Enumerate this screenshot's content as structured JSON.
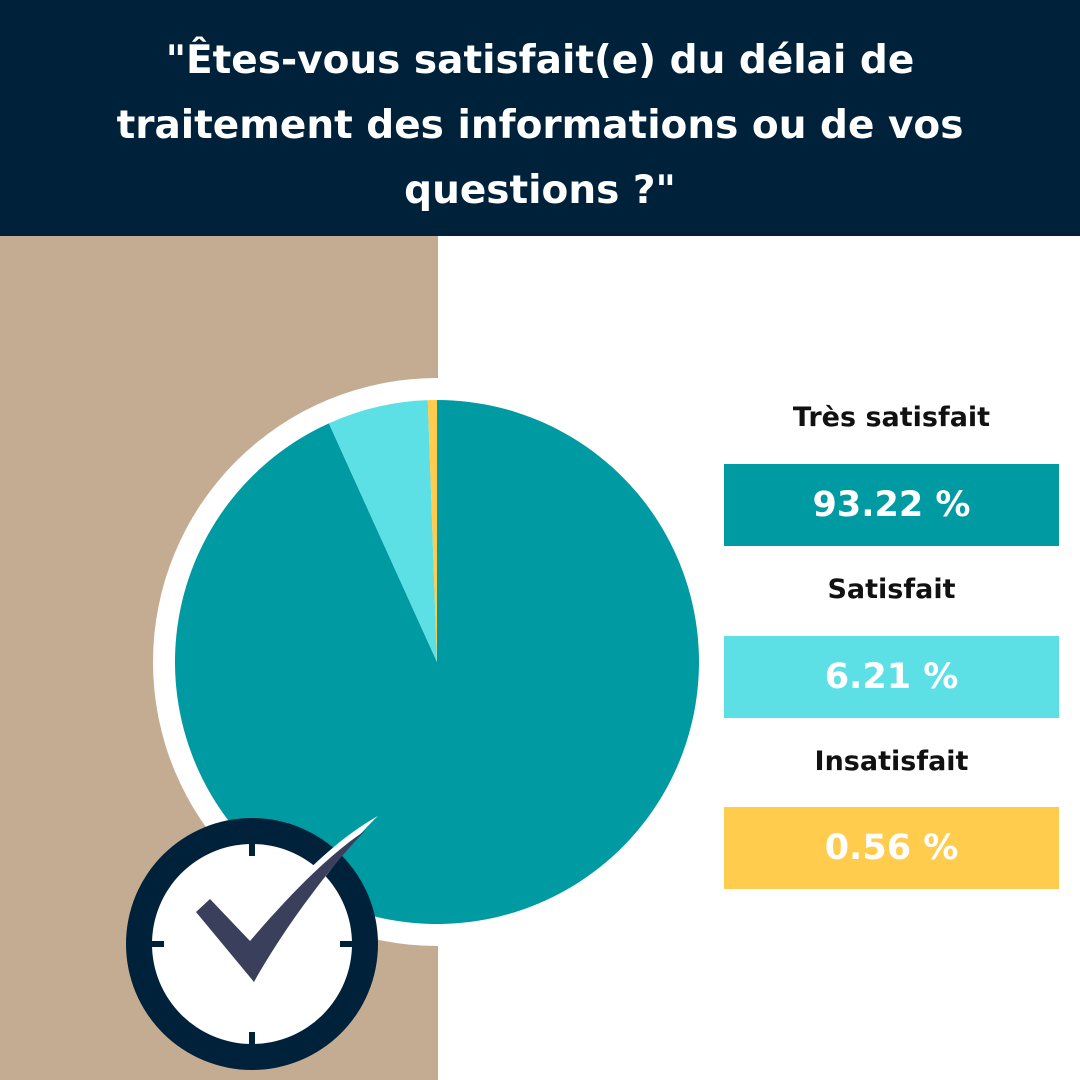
{
  "title_lines": [
    "\"Êtes-vous satisfait(e) du délai de",
    "traitement des informations ou de vos",
    "questions ?\""
  ],
  "legend": [
    {
      "label": "Très satisfait",
      "value_text": "93.22 %"
    },
    {
      "label": "Satisfait",
      "value_text": "6.21 %"
    },
    {
      "label": "Insatisfait",
      "value_text": "0.56 %"
    }
  ],
  "colors": {
    "header_bg": "#00213a",
    "panel_bg": "#c4ac92",
    "tres_satisfait": "#009aa3",
    "satisfait": "#5ce0e6",
    "insatisfait": "#ffcc4d",
    "clock_ring": "#00213a",
    "checkmark": "#3a3f5c"
  },
  "icons": [
    "clock-icon",
    "checkmark-icon"
  ],
  "chart_data": {
    "type": "pie",
    "categories": [
      "Très satisfait",
      "Satisfait",
      "Insatisfait"
    ],
    "values": [
      93.22,
      6.21,
      0.56
    ],
    "colors": [
      "#009aa3",
      "#5ce0e6",
      "#ffcc4d"
    ],
    "unit": "%"
  }
}
